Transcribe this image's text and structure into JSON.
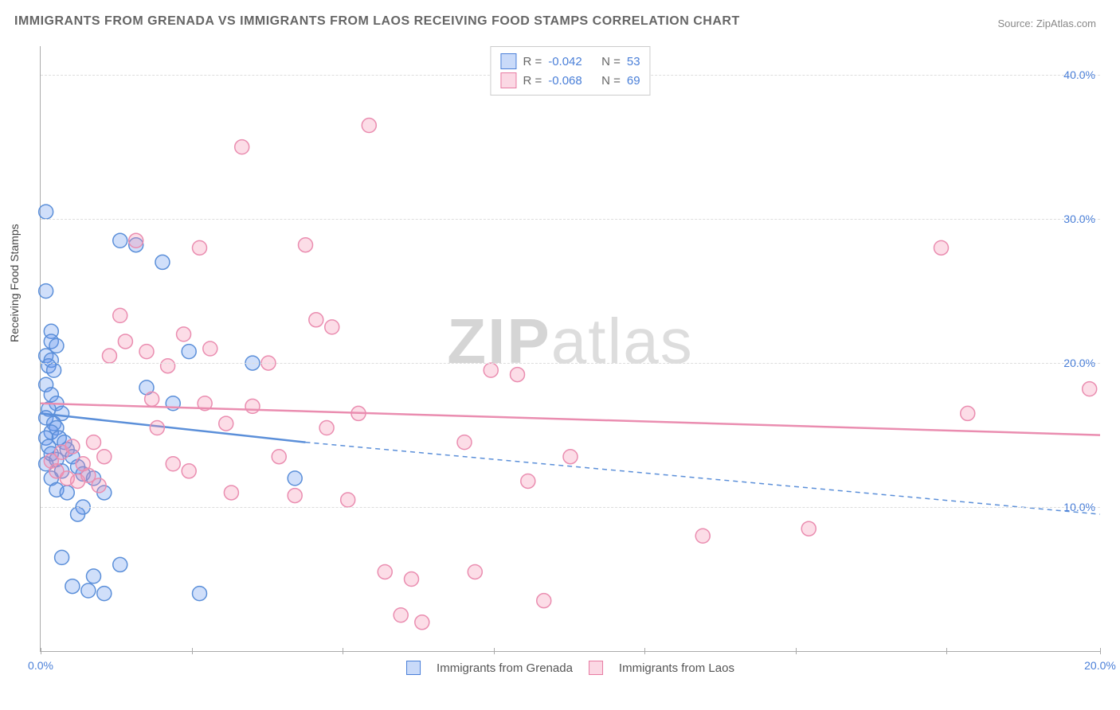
{
  "title": "IMMIGRANTS FROM GRENADA VS IMMIGRANTS FROM LAOS RECEIVING FOOD STAMPS CORRELATION CHART",
  "source": "Source: ZipAtlas.com",
  "ylabel_title": "Receiving Food Stamps",
  "watermark_a": "ZIP",
  "watermark_b": "atlas",
  "chart": {
    "type": "scatter",
    "xlim": [
      0,
      20
    ],
    "ylim": [
      0,
      42
    ],
    "background_color": "#ffffff",
    "grid_color": "#e0e0e0",
    "xticks": [
      0,
      2.85,
      5.7,
      8.55,
      11.4,
      14.25,
      17.1,
      20
    ],
    "xtick_labels": [
      "0.0%",
      "",
      "",
      "",
      "",
      "",
      "",
      "20.0%"
    ],
    "yticks": [
      10,
      20,
      30,
      40
    ],
    "ytick_labels": [
      "10.0%",
      "20.0%",
      "30.0%",
      "40.0%"
    ],
    "marker_radius": 9,
    "marker_stroke_width": 1.5,
    "line_width": 2.5,
    "title_fontsize": 16,
    "label_fontsize": 14
  },
  "series": [
    {
      "name": "Immigrants from Grenada",
      "color_fill": "rgba(100,149,237,0.30)",
      "color_stroke": "#5b8fd9",
      "r": "-0.042",
      "n": "53",
      "trend": {
        "x1": 0,
        "y1": 16.5,
        "x2": 5,
        "y2": 14.5,
        "ext_x2": 20,
        "ext_y2": 9.5,
        "dash_from": 5
      },
      "points": [
        [
          0.1,
          30.5
        ],
        [
          0.1,
          25
        ],
        [
          0.2,
          22.2
        ],
        [
          0.2,
          21.5
        ],
        [
          0.3,
          21.2
        ],
        [
          0.1,
          20.5
        ],
        [
          0.2,
          20.2
        ],
        [
          0.15,
          19.8
        ],
        [
          0.25,
          19.5
        ],
        [
          0.1,
          18.5
        ],
        [
          0.2,
          17.8
        ],
        [
          0.3,
          17.2
        ],
        [
          0.15,
          16.8
        ],
        [
          0.4,
          16.5
        ],
        [
          0.1,
          16.2
        ],
        [
          0.25,
          15.8
        ],
        [
          0.3,
          15.5
        ],
        [
          0.2,
          15.2
        ],
        [
          0.1,
          14.8
        ],
        [
          0.35,
          14.8
        ],
        [
          0.45,
          14.5
        ],
        [
          0.15,
          14.2
        ],
        [
          0.5,
          14.0
        ],
        [
          0.2,
          13.7
        ],
        [
          0.6,
          13.5
        ],
        [
          0.3,
          13.3
        ],
        [
          0.1,
          13.0
        ],
        [
          0.7,
          12.8
        ],
        [
          0.4,
          12.5
        ],
        [
          0.8,
          12.3
        ],
        [
          0.2,
          12.0
        ],
        [
          1.0,
          12.0
        ],
        [
          0.3,
          11.2
        ],
        [
          0.5,
          11.0
        ],
        [
          1.2,
          11.0
        ],
        [
          0.8,
          10.0
        ],
        [
          0.4,
          6.5
        ],
        [
          1.5,
          6.0
        ],
        [
          1.0,
          5.2
        ],
        [
          0.6,
          4.5
        ],
        [
          0.9,
          4.2
        ],
        [
          1.2,
          4.0
        ],
        [
          0.7,
          9.5
        ],
        [
          1.5,
          28.5
        ],
        [
          1.8,
          28.2
        ],
        [
          2.3,
          27.0
        ],
        [
          2.5,
          17.2
        ],
        [
          2.8,
          20.8
        ],
        [
          4.0,
          20.0
        ],
        [
          2.0,
          18.3
        ],
        [
          4.8,
          12.0
        ],
        [
          3.0,
          4.0
        ]
      ]
    },
    {
      "name": "Immigrants from Laos",
      "color_fill": "rgba(244,143,177,0.30)",
      "color_stroke": "#ea8db0",
      "r": "-0.068",
      "n": "69",
      "trend": {
        "x1": 0,
        "y1": 17.2,
        "x2": 20,
        "y2": 15.0
      },
      "points": [
        [
          0.2,
          13.2
        ],
        [
          0.3,
          12.5
        ],
        [
          0.4,
          13.8
        ],
        [
          0.5,
          12.0
        ],
        [
          0.6,
          14.2
        ],
        [
          0.7,
          11.8
        ],
        [
          0.8,
          13.0
        ],
        [
          0.9,
          12.2
        ],
        [
          1.0,
          14.5
        ],
        [
          1.1,
          11.5
        ],
        [
          1.2,
          13.5
        ],
        [
          1.3,
          20.5
        ],
        [
          1.5,
          23.3
        ],
        [
          1.6,
          21.5
        ],
        [
          1.8,
          28.5
        ],
        [
          2.0,
          20.8
        ],
        [
          2.1,
          17.5
        ],
        [
          2.2,
          15.5
        ],
        [
          2.4,
          19.8
        ],
        [
          2.5,
          13.0
        ],
        [
          2.7,
          22.0
        ],
        [
          2.8,
          12.5
        ],
        [
          3.0,
          28.0
        ],
        [
          3.1,
          17.2
        ],
        [
          3.2,
          21.0
        ],
        [
          3.5,
          15.8
        ],
        [
          3.6,
          11.0
        ],
        [
          3.8,
          35.0
        ],
        [
          4.0,
          17.0
        ],
        [
          4.3,
          20.0
        ],
        [
          4.5,
          13.5
        ],
        [
          4.8,
          10.8
        ],
        [
          5.0,
          28.2
        ],
        [
          5.2,
          23.0
        ],
        [
          5.4,
          15.5
        ],
        [
          5.5,
          22.5
        ],
        [
          5.8,
          10.5
        ],
        [
          6.0,
          16.5
        ],
        [
          6.2,
          36.5
        ],
        [
          6.5,
          5.5
        ],
        [
          6.8,
          2.5
        ],
        [
          7.0,
          5.0
        ],
        [
          7.2,
          2.0
        ],
        [
          8.0,
          14.5
        ],
        [
          8.2,
          5.5
        ],
        [
          8.5,
          19.5
        ],
        [
          9.0,
          19.2
        ],
        [
          9.2,
          11.8
        ],
        [
          9.5,
          3.5
        ],
        [
          10.0,
          13.5
        ],
        [
          12.5,
          8.0
        ],
        [
          14.5,
          8.5
        ],
        [
          17.0,
          28.0
        ],
        [
          17.5,
          16.5
        ],
        [
          19.8,
          18.2
        ]
      ]
    }
  ],
  "legend_top": {
    "r_label": "R =",
    "n_label": "N ="
  },
  "legend_bottom": {
    "items": [
      "Immigrants from Grenada",
      "Immigrants from Laos"
    ]
  }
}
